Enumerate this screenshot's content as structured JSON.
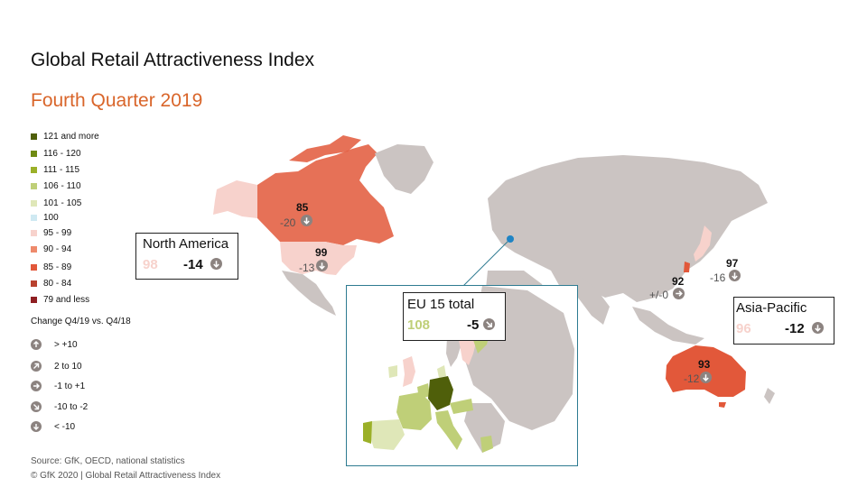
{
  "title": "Global Retail Attractiveness Index",
  "subtitle": "Fourth Quarter 2019",
  "legend": {
    "items": [
      {
        "label": "121 and more",
        "color": "#4f5f0a"
      },
      {
        "label": "116 - 120",
        "color": "#6f8a12"
      },
      {
        "label": "111 - 115",
        "color": "#9bb028"
      },
      {
        "label": "106 - 110",
        "color": "#bfcf78"
      },
      {
        "label": "101 - 105",
        "color": "#dfe7b8"
      },
      {
        "label": "100",
        "color": "#cfe9f2"
      },
      {
        "label": "95 - 99",
        "color": "#f7d2cc"
      },
      {
        "label": "90 - 94",
        "color": "#ee8a6c"
      },
      {
        "label": "85 - 89",
        "color": "#e2583a"
      },
      {
        "label": "80 - 84",
        "color": "#b8412e"
      },
      {
        "label": "79 and less",
        "color": "#8f1f22"
      }
    ],
    "change_title": "Change Q4/19 vs. Q4/18",
    "change_items": [
      {
        "label": "> +10",
        "icon": "arrow-up"
      },
      {
        "label": "2 to 10",
        "icon": "arrow-up-right"
      },
      {
        "label": "-1 to +1",
        "icon": "arrow-right"
      },
      {
        "label": "-10 to -2",
        "icon": "arrow-down-right"
      },
      {
        "label": "< -10",
        "icon": "arrow-down"
      }
    ]
  },
  "countries": [
    {
      "id": "canada",
      "value": "85",
      "change": "-20",
      "icon": "arrow-down"
    },
    {
      "id": "usa",
      "value": "99",
      "change": "-13",
      "icon": "arrow-down"
    },
    {
      "id": "japan",
      "value": "97",
      "change": "-16",
      "icon": "arrow-down"
    },
    {
      "id": "south-korea",
      "value": "92",
      "change": "+/-0",
      "icon": "arrow-right"
    },
    {
      "id": "australia",
      "value": "93",
      "change": "-12",
      "icon": "arrow-down"
    }
  ],
  "regions": {
    "north_america": {
      "name": "North America",
      "index": "98",
      "change": "-14",
      "index_color": "#f7d2cc"
    },
    "eu15": {
      "name": "EU 15 total",
      "index": "108",
      "change": "-5",
      "index_color": "#bfcf78"
    },
    "asia_pacific": {
      "name": "Asia-Pacific",
      "index": "96",
      "change": "-12",
      "index_color": "#f7d2cc"
    }
  },
  "colors": {
    "land": "#cbc4c2",
    "subtitle": "#d9652a",
    "connector": "#2e7b91"
  },
  "source": "Source: GfK, OECD,  national statistics",
  "copyright": "© GfK 2020 | Global Retail Attractiveness Index"
}
